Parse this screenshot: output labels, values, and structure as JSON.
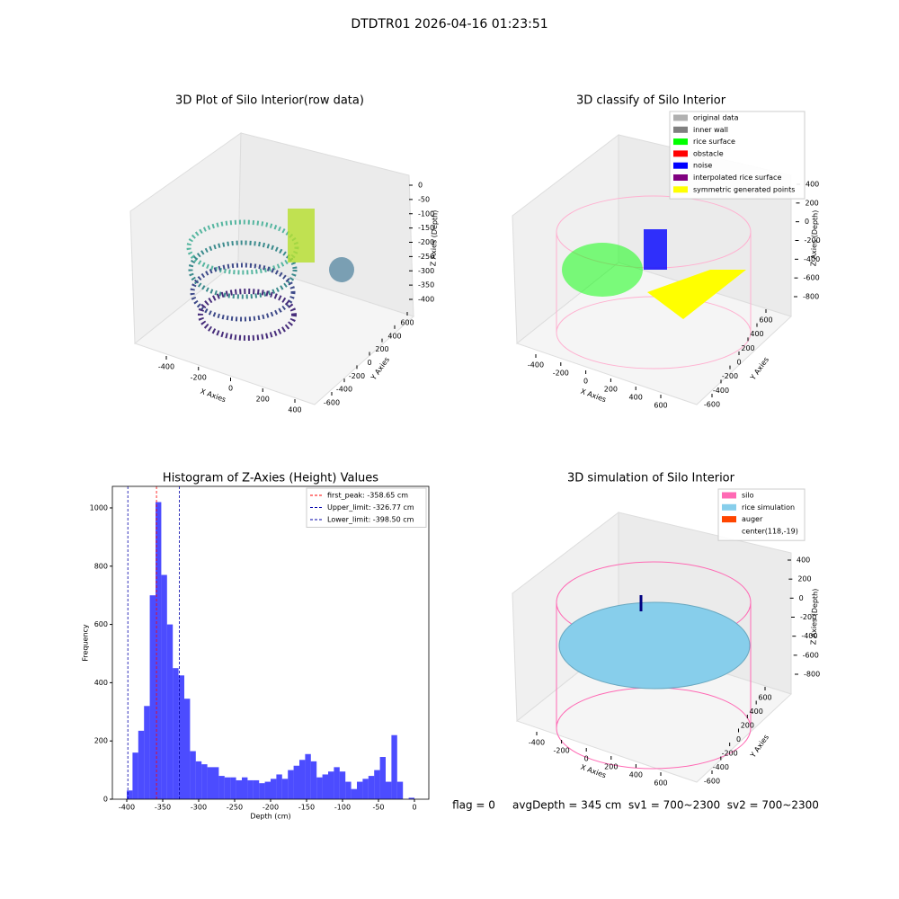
{
  "title": "DTDTR01 2026-04-16 01:23:51",
  "footer": "flag = 0     avgDepth = 345 cm  sv1 = 700~2300  sv2 = 700~2300",
  "chart_data": [
    {
      "type": "scatter3d",
      "title": "3D Plot of Silo Interior(row data)",
      "xlabel": "X Axies",
      "ylabel": "Y Axies",
      "zlabel": "Z Axies (Depth)",
      "xticks": [
        -400,
        -200,
        0,
        200,
        400
      ],
      "yticks": [
        -600,
        -400,
        -200,
        0,
        200,
        400,
        600
      ],
      "zticks": [
        0,
        -50,
        -100,
        -150,
        -200,
        -250,
        -300,
        -350,
        -400
      ]
    },
    {
      "type": "scatter3d",
      "title": "3D classify of Silo Interior",
      "xlabel": "X Axies",
      "ylabel": "Y Axies",
      "zlabel": "Z Axies (Depth)",
      "xticks": [
        -400,
        -200,
        0,
        200,
        400,
        600
      ],
      "yticks": [
        -600,
        -400,
        -200,
        0,
        200,
        400,
        600
      ],
      "zticks": [
        400,
        200,
        0,
        -200,
        -400,
        -600,
        -800
      ],
      "legend": [
        {
          "name": "original data",
          "color": "#b0b0b0"
        },
        {
          "name": "inner wall",
          "color": "#808080"
        },
        {
          "name": "rice surface",
          "color": "#00ff00"
        },
        {
          "name": "obstacle",
          "color": "#ff0000"
        },
        {
          "name": "noise",
          "color": "#0000ff"
        },
        {
          "name": "interpolated rice surface",
          "color": "#800080"
        },
        {
          "name": "symmetric generated points",
          "color": "#ffff00"
        }
      ]
    },
    {
      "type": "histogram",
      "title": "Histogram of Z-Axies (Height) Values",
      "xlabel": "Depth (cm)",
      "ylabel": "Frequency",
      "color": "#0000ff",
      "alpha": 0.7,
      "bins": [
        -400,
        -392,
        -384,
        -376,
        -368,
        -360,
        -352,
        -344,
        -336,
        -328,
        -320,
        -312,
        -304,
        -296,
        -288,
        -280,
        -272,
        -264,
        -256,
        -248,
        -240,
        -232,
        -224,
        -216,
        -208,
        -200,
        -192,
        -184,
        -176,
        -168,
        -160,
        -152,
        -144,
        -136,
        -128,
        -120,
        -112,
        -104,
        -96,
        -88,
        -80,
        -72,
        -64,
        -56,
        -48,
        -40,
        -32,
        -24,
        -16,
        -8,
        0
      ],
      "counts": [
        30,
        160,
        235,
        320,
        700,
        1020,
        770,
        600,
        450,
        425,
        345,
        165,
        130,
        120,
        110,
        110,
        80,
        75,
        75,
        65,
        75,
        65,
        65,
        55,
        60,
        70,
        85,
        70,
        100,
        115,
        135,
        155,
        130,
        75,
        85,
        95,
        110,
        95,
        60,
        35,
        60,
        70,
        80,
        100,
        145,
        60,
        220,
        60,
        0,
        5
      ],
      "xlim": [
        -420,
        20
      ],
      "ylim": [
        0,
        1074
      ],
      "xticks": [
        -400,
        -350,
        -300,
        -250,
        -200,
        -150,
        -100,
        -50,
        0
      ],
      "yticks": [
        0,
        200,
        400,
        600,
        800,
        1000
      ],
      "lines": [
        {
          "label": "first_peak: -358.65 cm",
          "value": -358.65,
          "color": "#ff0000"
        },
        {
          "label": "Upper_limit: -326.77 cm",
          "value": -326.77,
          "color": "#0000aa"
        },
        {
          "label": "Lower_limit: -398.50 cm",
          "value": -398.5,
          "color": "#0000aa"
        }
      ]
    },
    {
      "type": "scatter3d",
      "title": "3D simulation of Silo Interior",
      "xlabel": "X Axies",
      "ylabel": "Y Axies",
      "zlabel": "Z Axies (Depth)",
      "xticks": [
        -400,
        -200,
        0,
        200,
        400,
        600
      ],
      "yticks": [
        -600,
        -400,
        -200,
        0,
        200,
        400,
        600
      ],
      "zticks": [
        400,
        200,
        0,
        -200,
        -400,
        -600,
        -800
      ],
      "legend": [
        {
          "name": "silo",
          "color": "#ff69b4"
        },
        {
          "name": "rice simulation",
          "color": "#87ceeb"
        },
        {
          "name": "auger",
          "color": "#ff4500"
        },
        {
          "name": "center(118,-19)"
        }
      ]
    }
  ]
}
